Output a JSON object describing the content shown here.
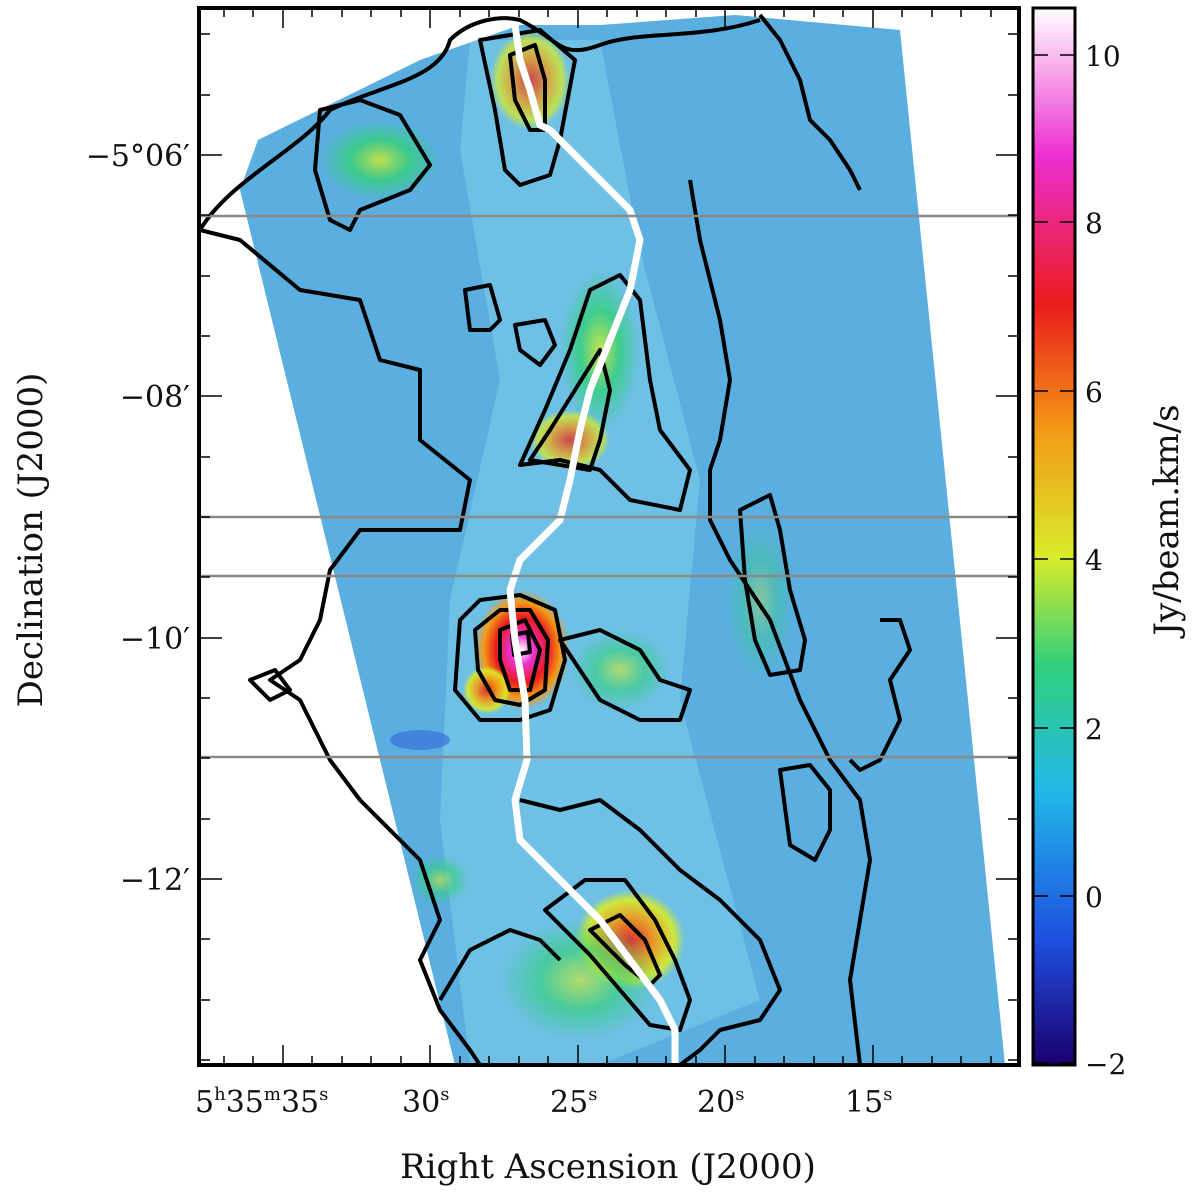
{
  "figure": {
    "x_axis_title": "Right Ascension (J2000)",
    "y_axis_title": "Declination (J2000)",
    "colorbar_title": "Jy/beam.km/s",
    "x_ticks": [
      {
        "h": "5",
        "m": "35",
        "s": "35"
      },
      {
        "s": "30"
      },
      {
        "s": "25"
      },
      {
        "s": "20"
      },
      {
        "s": "15"
      }
    ],
    "y_ticks": [
      {
        "label": "−5°06′"
      },
      {
        "label": "−08′"
      },
      {
        "label": "−10′"
      },
      {
        "label": "−12′"
      }
    ],
    "colorbar_ticks": [
      "10",
      "8",
      "6",
      "4",
      "2",
      "0",
      "−2"
    ],
    "colorbar_range": [
      -2,
      10.5
    ],
    "colormap": [
      "#1a006e",
      "#1f4fe0",
      "#22b8e8",
      "#32d07a",
      "#d8ec2a",
      "#f39a16",
      "#ea1c1c",
      "#ec2fd0",
      "#ffffff"
    ],
    "background_color": "#5aaee0",
    "contour_color": "#000000",
    "ridge_color": "#ffffff",
    "cut_line_color": "#8a8a8a",
    "cut_lines_count": 4
  }
}
